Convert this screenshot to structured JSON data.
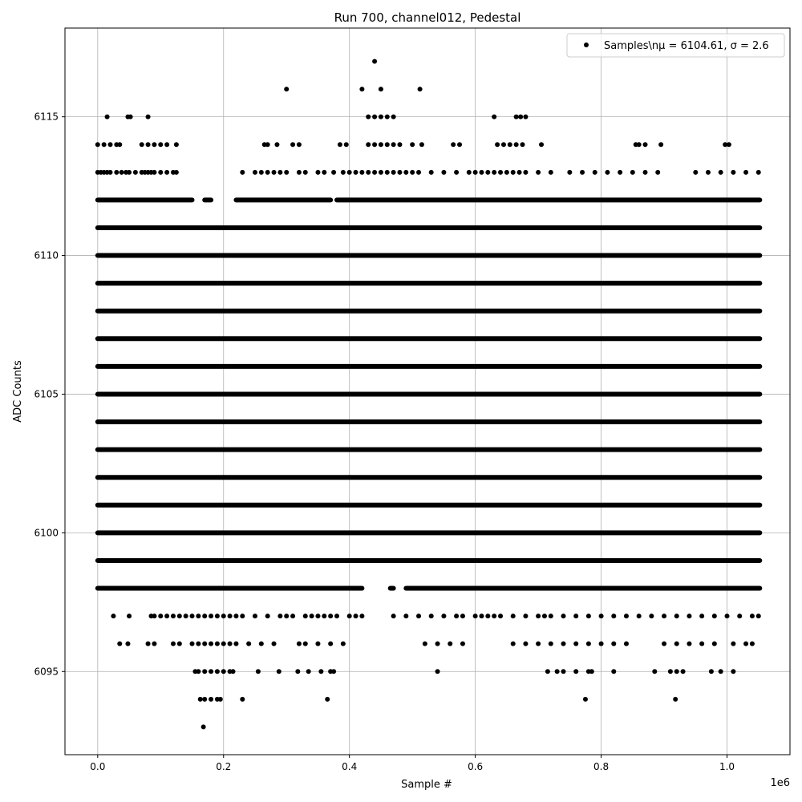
{
  "chart_data": {
    "type": "scatter",
    "title": "Run 700, channel012, Pedestal",
    "xlabel": "Sample #",
    "ylabel": "ADC Counts",
    "x_offset_label": "1e6",
    "xlim": [
      -0.052,
      1.1
    ],
    "ylim": [
      6092,
      6118.2
    ],
    "x_ticks": [
      0.0,
      0.2,
      0.4,
      0.6,
      0.8,
      1.0
    ],
    "x_tick_labels": [
      "0.0",
      "0.2",
      "0.4",
      "0.6",
      "0.8",
      "1.0"
    ],
    "y_ticks": [
      6095,
      6100,
      6105,
      6110,
      6115
    ],
    "y_tick_labels": [
      "6095",
      "6100",
      "6105",
      "6110",
      "6115"
    ],
    "grid": true,
    "legend": {
      "label": "Samples\\nμ = 6104.61, σ = 2.6",
      "location": "upper right"
    },
    "marker_color": "#000000",
    "series": [
      {
        "name": "Samples\\nμ = 6104.61, σ = 2.6",
        "bands": [
          {
            "y": 6098,
            "segments": [
              [
                0.0,
                0.42
              ],
              [
                0.465,
                0.47
              ],
              [
                0.49,
                1.052
              ]
            ]
          },
          {
            "y": 6099,
            "segments": [
              [
                0.0,
                1.052
              ]
            ]
          },
          {
            "y": 6100,
            "segments": [
              [
                0.0,
                1.052
              ]
            ]
          },
          {
            "y": 6101,
            "segments": [
              [
                0.0,
                1.052
              ]
            ]
          },
          {
            "y": 6102,
            "segments": [
              [
                0.0,
                1.052
              ]
            ]
          },
          {
            "y": 6103,
            "segments": [
              [
                0.0,
                1.052
              ]
            ]
          },
          {
            "y": 6104,
            "segments": [
              [
                0.0,
                1.052
              ]
            ]
          },
          {
            "y": 6105,
            "segments": [
              [
                0.0,
                1.052
              ]
            ]
          },
          {
            "y": 6106,
            "segments": [
              [
                0.0,
                1.052
              ]
            ]
          },
          {
            "y": 6107,
            "segments": [
              [
                0.0,
                1.052
              ]
            ]
          },
          {
            "y": 6108,
            "segments": [
              [
                0.0,
                1.052
              ]
            ]
          },
          {
            "y": 6109,
            "segments": [
              [
                0.0,
                1.052
              ]
            ]
          },
          {
            "y": 6110,
            "segments": [
              [
                0.0,
                1.052
              ]
            ]
          },
          {
            "y": 6111,
            "segments": [
              [
                0.0,
                1.052
              ]
            ]
          },
          {
            "y": 6112,
            "segments": [
              [
                0.0,
                0.15
              ],
              [
                0.17,
                0.18
              ],
              [
                0.22,
                0.37
              ],
              [
                0.38,
                1.052
              ]
            ]
          }
        ],
        "points": {
          "6113": [
            0.0,
            0.005,
            0.01,
            0.015,
            0.02,
            0.03,
            0.038,
            0.045,
            0.05,
            0.06,
            0.07,
            0.075,
            0.08,
            0.085,
            0.09,
            0.1,
            0.11,
            0.12,
            0.125,
            0.23,
            0.25,
            0.26,
            0.27,
            0.28,
            0.29,
            0.3,
            0.32,
            0.33,
            0.35,
            0.36,
            0.375,
            0.39,
            0.4,
            0.41,
            0.42,
            0.43,
            0.44,
            0.45,
            0.46,
            0.47,
            0.48,
            0.49,
            0.5,
            0.51,
            0.53,
            0.55,
            0.57,
            0.59,
            0.6,
            0.61,
            0.62,
            0.63,
            0.64,
            0.65,
            0.66,
            0.67,
            0.68,
            0.7,
            0.72,
            0.75,
            0.77,
            0.79,
            0.81,
            0.83,
            0.85,
            0.87,
            0.89,
            0.95,
            0.97,
            0.99,
            1.01,
            1.03,
            1.05
          ],
          "6114": [
            0.0,
            0.01,
            0.02,
            0.03,
            0.035,
            0.07,
            0.08,
            0.09,
            0.1,
            0.11,
            0.125,
            0.265,
            0.27,
            0.285,
            0.31,
            0.32,
            0.385,
            0.395,
            0.43,
            0.44,
            0.45,
            0.46,
            0.47,
            0.48,
            0.5,
            0.515,
            0.565,
            0.575,
            0.635,
            0.645,
            0.655,
            0.665,
            0.675,
            0.705,
            0.855,
            0.86,
            0.87,
            0.895,
            0.997,
            1.003
          ],
          "6115": [
            0.015,
            0.048,
            0.052,
            0.08,
            0.43,
            0.44,
            0.45,
            0.46,
            0.47,
            0.63,
            0.665,
            0.672,
            0.68
          ],
          "6116": [
            0.3,
            0.42,
            0.45,
            0.512
          ],
          "6117": [
            0.44
          ],
          "6097": [
            0.025,
            0.05,
            0.085,
            0.09,
            0.1,
            0.11,
            0.12,
            0.13,
            0.14,
            0.15,
            0.16,
            0.17,
            0.18,
            0.19,
            0.2,
            0.21,
            0.22,
            0.23,
            0.25,
            0.27,
            0.29,
            0.3,
            0.31,
            0.33,
            0.34,
            0.35,
            0.36,
            0.37,
            0.38,
            0.4,
            0.41,
            0.42,
            0.47,
            0.49,
            0.51,
            0.53,
            0.55,
            0.57,
            0.58,
            0.6,
            0.61,
            0.62,
            0.63,
            0.64,
            0.66,
            0.68,
            0.7,
            0.71,
            0.72,
            0.74,
            0.76,
            0.78,
            0.8,
            0.82,
            0.84,
            0.86,
            0.88,
            0.9,
            0.92,
            0.94,
            0.96,
            0.98,
            1.0,
            1.02,
            1.04,
            1.05
          ],
          "6096": [
            0.035,
            0.048,
            0.08,
            0.09,
            0.12,
            0.13,
            0.15,
            0.16,
            0.17,
            0.18,
            0.19,
            0.2,
            0.21,
            0.22,
            0.24,
            0.26,
            0.28,
            0.32,
            0.33,
            0.35,
            0.37,
            0.39,
            0.52,
            0.54,
            0.56,
            0.58,
            0.66,
            0.68,
            0.7,
            0.72,
            0.74,
            0.76,
            0.78,
            0.8,
            0.82,
            0.84,
            0.9,
            0.92,
            0.94,
            0.96,
            0.98,
            1.01,
            1.03,
            1.04
          ],
          "6095": [
            0.155,
            0.16,
            0.17,
            0.18,
            0.19,
            0.2,
            0.21,
            0.215,
            0.255,
            0.288,
            0.318,
            0.335,
            0.355,
            0.37,
            0.375,
            0.54,
            0.715,
            0.73,
            0.74,
            0.76,
            0.78,
            0.785,
            0.82,
            0.885,
            0.91,
            0.92,
            0.93,
            0.975,
            0.99,
            1.01
          ],
          "6094": [
            0.163,
            0.17,
            0.18,
            0.19,
            0.195,
            0.23,
            0.365,
            0.775,
            0.918
          ],
          "6093": [
            0.168
          ]
        }
      }
    ]
  }
}
